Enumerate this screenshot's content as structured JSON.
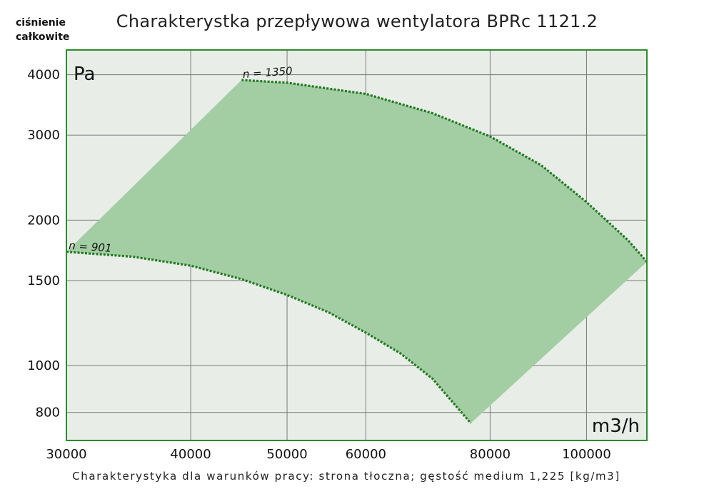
{
  "title": "Charakterystka przepływowa wentylatora BPRc 1121.2",
  "y_axis_title": [
    "ciśnienie",
    "całkowite"
  ],
  "caption": "Charakterystyka dla warunków pracy: strona tłoczna; gęstość medium 1,225 [kg/m3]",
  "colors": {
    "plot_background": "#e8ede8",
    "frame": "#2e8b2e",
    "grid": "#7a7a7a",
    "fill": "#a3cda3",
    "curve": "#1f7a1f"
  },
  "chart_data": {
    "type": "area",
    "x_scale": "log",
    "y_scale": "log",
    "xlim": [
      30000,
      115000
    ],
    "ylim": [
      700,
      4500
    ],
    "x_unit": "m3/h",
    "y_unit": "Pa",
    "x_ticks": [
      30000,
      40000,
      50000,
      60000,
      80000,
      100000
    ],
    "y_ticks": [
      800,
      1000,
      1500,
      2000,
      3000,
      4000
    ],
    "grid": true,
    "series": [
      {
        "name": "n = 1350",
        "x": [
          45000,
          50000,
          60000,
          70000,
          80000,
          90000,
          100000,
          110000,
          115000
        ],
        "y": [
          3900,
          3850,
          3650,
          3330,
          2980,
          2600,
          2180,
          1820,
          1640
        ]
      },
      {
        "name": "n = 901",
        "x": [
          30000,
          35000,
          40000,
          45000,
          50000,
          55000,
          60000,
          65000,
          70000,
          73000,
          76500
        ],
        "y": [
          1720,
          1680,
          1610,
          1510,
          1400,
          1290,
          1170,
          1060,
          940,
          850,
          760
        ]
      }
    ]
  }
}
